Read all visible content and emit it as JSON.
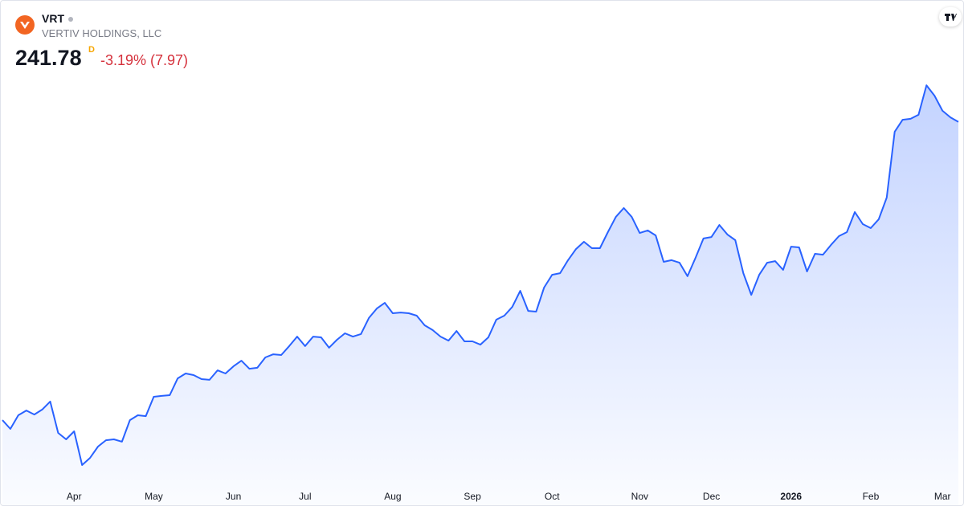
{
  "header": {
    "symbol": "VRT",
    "name": "VERTIV HOLDINGS, LLC",
    "price": 241.78,
    "interval": "D",
    "change": "-3.19% (7.97)"
  },
  "chart_data": {
    "type": "area",
    "color": "#2962ff",
    "categories": [
      null,
      null,
      null,
      null,
      null,
      null,
      null,
      null,
      null,
      "Apr",
      null,
      null,
      null,
      null,
      null,
      null,
      null,
      null,
      null,
      "May",
      null,
      null,
      null,
      null,
      null,
      null,
      null,
      null,
      null,
      "Jun",
      null,
      null,
      null,
      null,
      null,
      null,
      null,
      null,
      "Jul",
      null,
      null,
      null,
      null,
      null,
      null,
      null,
      null,
      null,
      null,
      "Aug",
      null,
      null,
      null,
      null,
      null,
      null,
      null,
      null,
      null,
      "Sep",
      null,
      null,
      null,
      null,
      null,
      null,
      null,
      null,
      null,
      "Oct",
      null,
      null,
      null,
      null,
      null,
      null,
      null,
      null,
      null,
      null,
      "Nov",
      null,
      null,
      null,
      null,
      null,
      null,
      null,
      null,
      "Dec",
      null,
      null,
      null,
      null,
      null,
      null,
      null,
      null,
      null,
      "2026",
      null,
      null,
      null,
      null,
      null,
      null,
      null,
      null,
      null,
      "Feb",
      null,
      null,
      null,
      null,
      null,
      null,
      null,
      null,
      "Mar",
      null,
      null
    ],
    "values": [
      78.3,
      73.5,
      81.0,
      83.6,
      81.4,
      84.1,
      88.5,
      71.3,
      67.8,
      72.2,
      53.7,
      57.6,
      63.8,
      67.3,
      67.8,
      66.5,
      78.3,
      81.0,
      80.5,
      91.1,
      91.6,
      92.0,
      101.2,
      103.9,
      103.0,
      100.8,
      100.4,
      105.6,
      103.9,
      107.8,
      110.9,
      106.5,
      107.0,
      112.7,
      114.4,
      114.0,
      118.9,
      124.1,
      118.9,
      124.1,
      123.7,
      118.0,
      122.4,
      125.9,
      124.1,
      125.5,
      134.3,
      139.5,
      142.6,
      136.9,
      137.3,
      136.9,
      135.6,
      130.3,
      127.7,
      124.1,
      121.9,
      127.2,
      121.5,
      121.5,
      119.7,
      123.7,
      133.4,
      135.6,
      140.4,
      149.2,
      138.2,
      137.8,
      151.0,
      158.0,
      158.9,
      166.0,
      172.1,
      176.1,
      172.6,
      172.6,
      181.4,
      189.7,
      194.6,
      189.7,
      180.9,
      182.3,
      179.6,
      165.1,
      166.0,
      164.6,
      157.2,
      167.3,
      177.9,
      178.7,
      185.3,
      180.1,
      177.0,
      158.9,
      147.0,
      158.0,
      164.6,
      165.5,
      160.7,
      173.4,
      173.0,
      159.8,
      169.5,
      169.0,
      174.3,
      179.2,
      181.4,
      192.4,
      185.8,
      183.6,
      188.4,
      200.3,
      236.4,
      243.0,
      243.5,
      245.7,
      261.9,
      256.2,
      247.9,
      244.3,
      241.78
    ],
    "ylim": [
      44,
      306
    ]
  }
}
